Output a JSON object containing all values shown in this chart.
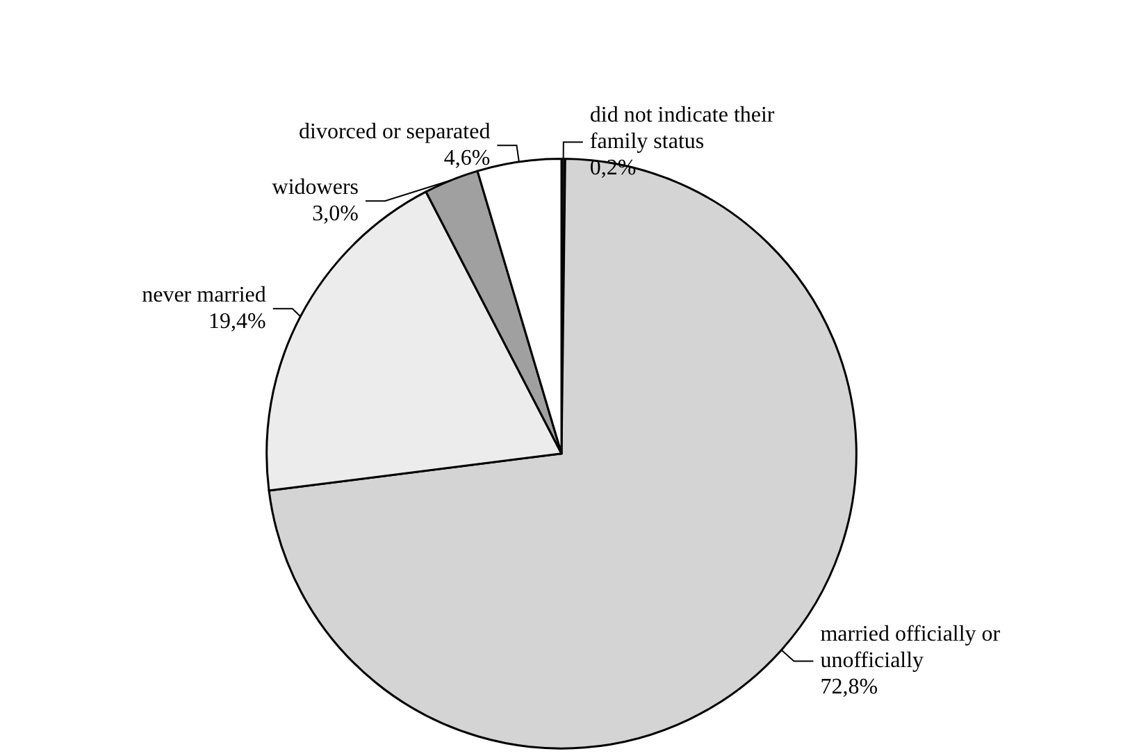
{
  "chart_data": {
    "type": "pie",
    "categories": [
      "did not indicate their family status",
      "married officially or unofficially",
      "never married",
      "widowers",
      "divorced or separated"
    ],
    "values": [
      0.2,
      72.8,
      19.4,
      3.0,
      4.6
    ],
    "value_labels": [
      "0,2%",
      "72,8%",
      "19,4%",
      "3,0%",
      "4,6%"
    ],
    "colors": [
      "#1a1a1a",
      "#d4d4d4",
      "#ececec",
      "#a0a0a0",
      "#ffffff"
    ],
    "legend": false
  }
}
